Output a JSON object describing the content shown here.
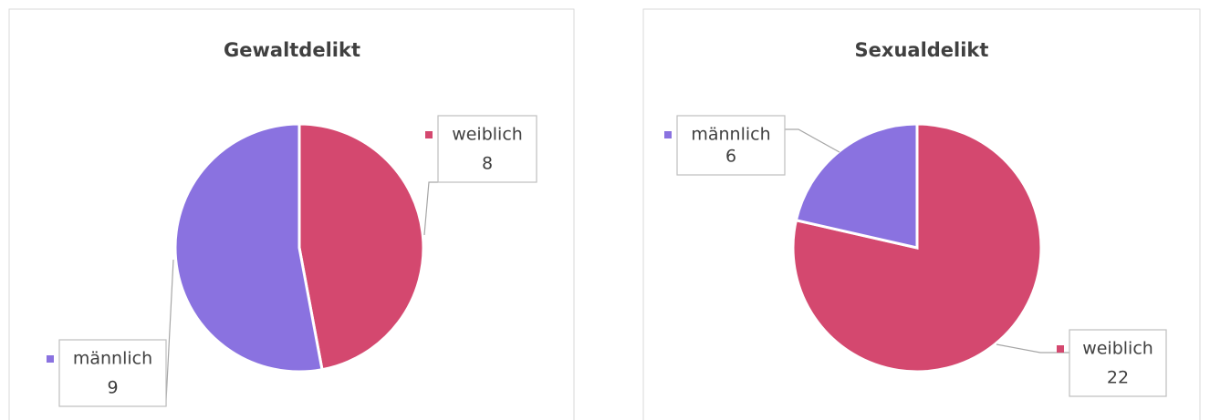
{
  "chart_data": [
    {
      "type": "pie",
      "title": "Gewaltdelikt",
      "categories": [
        "weiblich",
        "männlich"
      ],
      "values": [
        8,
        9
      ],
      "colors": [
        "#d4486f",
        "#8a72e0"
      ]
    },
    {
      "type": "pie",
      "title": "Sexualdelikt",
      "categories": [
        "weiblich",
        "männlich"
      ],
      "values": [
        22,
        6
      ],
      "colors": [
        "#d4486f",
        "#8a72e0"
      ]
    }
  ]
}
